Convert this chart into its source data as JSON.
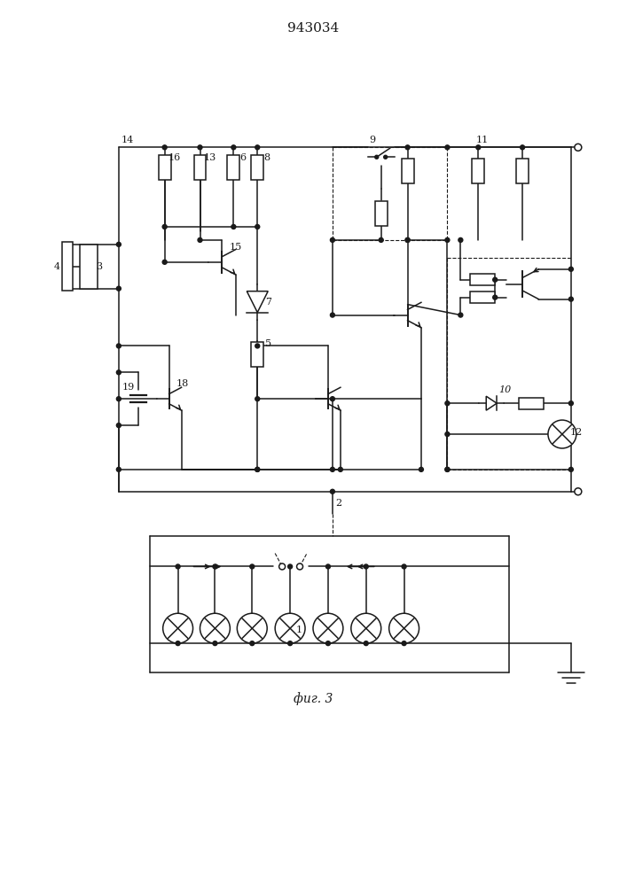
{
  "title": "943034",
  "fig_label": "фиг. 3",
  "bg_color": "#ffffff",
  "line_color": "#1a1a1a",
  "line_width": 1.1,
  "fig_width": 7.07,
  "fig_height": 10.0,
  "dpi": 100
}
